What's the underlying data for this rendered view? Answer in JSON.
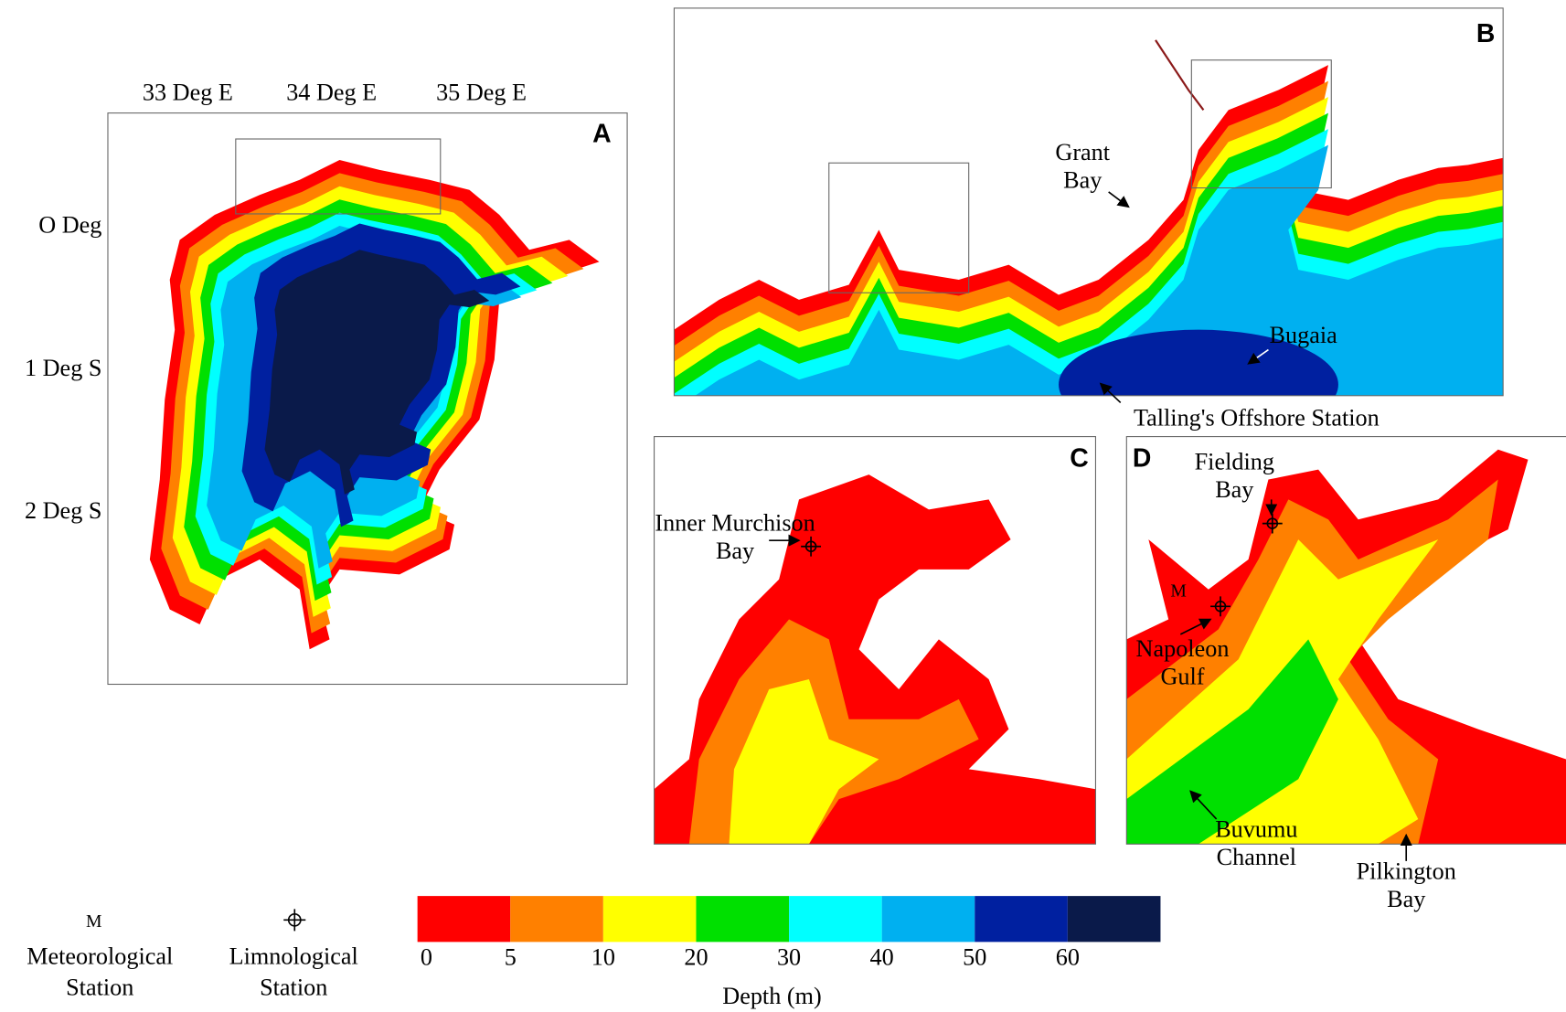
{
  "panels": {
    "a": {
      "label": "A",
      "lon_labels": [
        "33 Deg E",
        "34 Deg E",
        "35 Deg E"
      ],
      "lat_labels": [
        "O Deg",
        "1 Deg S",
        "2 Deg S"
      ]
    },
    "b": {
      "label": "B",
      "grant_bay": [
        "Grant",
        "Bay"
      ],
      "bugaia": "Bugaia",
      "tallings": "Talling's Offshore Station"
    },
    "c": {
      "label": "C",
      "inner_murchison_bay": [
        "Inner Murchison",
        "Bay"
      ]
    },
    "d": {
      "label": "D",
      "fielding_bay": [
        "Fielding",
        "Bay"
      ],
      "met_mark": "M",
      "napoleon_gulf": [
        "Napoleon",
        "Gulf"
      ],
      "buvumu_channel": [
        "Buvumu",
        "Channel"
      ],
      "pilkington_bay": [
        "Pilkington",
        "Bay"
      ]
    }
  },
  "legend": {
    "met_symbol": "M",
    "met_label": [
      "Meteorological",
      "Station"
    ],
    "limno_label": [
      "Limnological",
      "Station"
    ]
  },
  "colorbar": {
    "title": "Depth (m)",
    "ticks": [
      0,
      5,
      10,
      20,
      30,
      40,
      50,
      60
    ],
    "colors": [
      "#ff0000",
      "#ff8000",
      "#ffff00",
      "#00e000",
      "#00ffff",
      "#00b0f0",
      "#0020a0",
      "#0a1a4a"
    ]
  }
}
